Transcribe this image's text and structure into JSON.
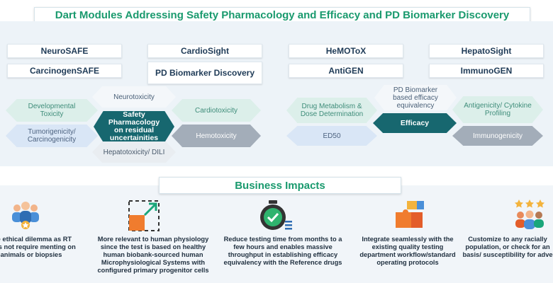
{
  "title": "Dart Modules Addressing Safety Pharmacology and Efficacy and PD Biomarker Discovery",
  "modules": [
    "NeuroSAFE",
    "CardioSight",
    "HeMOToX",
    "HepatoSight",
    "CarcinogenSAFE",
    "PD Biomarker Discovery",
    "AntiGEN",
    "ImmunoGEN"
  ],
  "safety": {
    "center": "Safety Pharmacology on residual uncertainities",
    "items": [
      "Neurotoxicity",
      "Developmental Toxicity",
      "Cardiotoxicity",
      "Tumorigenicity/ Carcinogenicity",
      "Hemotoxicity",
      "Hepatotoxicity/ DILI"
    ]
  },
  "efficacy": {
    "center": "Efficacy",
    "items": [
      "PD Biomarker based efficacy equivalency",
      "Drug Metabolism & Dose Determination",
      "Antigenicity/ Cytokine Profiling",
      "ED50",
      "Immunogenicity"
    ]
  },
  "business_title": "Business Impacts",
  "impacts": [
    {
      "icon": "team-award-icon",
      "text": "the ethical dilemma as RT does not require menting on animals or biopsies"
    },
    {
      "icon": "expand-arrows-icon",
      "text": "More relevant to human physiology since the test is based on healthy human biobank-sourced human Microphysiological Systems with configured primary progenitor cells"
    },
    {
      "icon": "stopwatch-check-icon",
      "text": "Reduce testing time from months to a few hours and enables massive throughput in establishing efficacy equivalency with the Reference drugs"
    },
    {
      "icon": "puzzle-icon",
      "text": "Integrate seamlessly with the existing quality testing department workflow/standard operating protocols"
    },
    {
      "icon": "people-stars-icon",
      "text": "Customize to any racially population, or check for an basis/ susceptibility for adve"
    }
  ],
  "colors": {
    "accent_green": "#1a9a6e",
    "dark_teal": "#17676f",
    "navy": "#1f3b57"
  }
}
